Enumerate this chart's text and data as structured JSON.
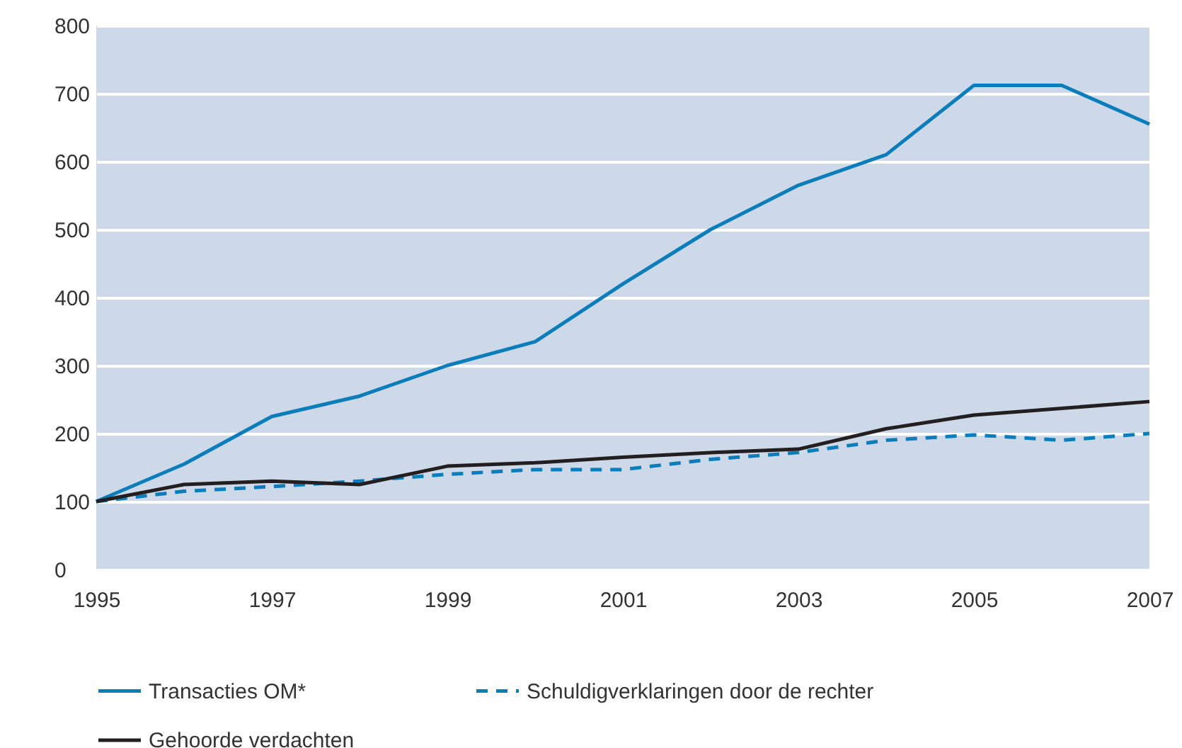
{
  "chart_data": {
    "type": "line",
    "x": [
      1995,
      1996,
      1997,
      1998,
      1999,
      2000,
      2001,
      2002,
      2003,
      2004,
      2005,
      2006,
      2007
    ],
    "series": [
      {
        "name": "Transacties OM*",
        "color": "#0a7dba",
        "line_style": "solid",
        "values": [
          100,
          155,
          225,
          255,
          300,
          335,
          420,
          500,
          565,
          610,
          712,
          712,
          655
        ]
      },
      {
        "name": "Schuldigverklaringen door de rechter",
        "color": "#0a7dba",
        "line_style": "dashed",
        "values": [
          100,
          115,
          122,
          130,
          140,
          147,
          147,
          162,
          172,
          190,
          198,
          190,
          200
        ]
      },
      {
        "name": "Gehoorde verdachten",
        "color": "#231f20",
        "line_style": "solid",
        "values": [
          100,
          125,
          130,
          125,
          152,
          157,
          165,
          172,
          177,
          207,
          227,
          237,
          247
        ]
      }
    ],
    "xlim": [
      1995,
      2007
    ],
    "xticks": [
      1995,
      1997,
      1999,
      2001,
      2003,
      2005,
      2007
    ],
    "ylim": [
      0,
      800
    ],
    "yticks": [
      0,
      100,
      200,
      300,
      400,
      500,
      600,
      700,
      800
    ],
    "grid": "y",
    "legend": "bottom",
    "marker": "none"
  }
}
